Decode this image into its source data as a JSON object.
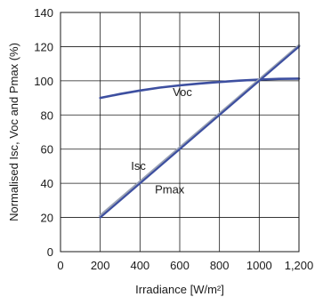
{
  "chart_data": {
    "type": "line",
    "title": "",
    "xlabel": "Irradiance [W/m²]",
    "ylabel": "Normalised Isc, Voc and Pmax (%)",
    "xlim": [
      0,
      1200
    ],
    "ylim": [
      0,
      140
    ],
    "x_ticks": [
      0,
      200,
      400,
      600,
      800,
      1000,
      1200
    ],
    "x_tick_labels": [
      "0",
      "200",
      "400",
      "600",
      "800",
      "1000",
      "1,200"
    ],
    "y_ticks": [
      0,
      20,
      40,
      60,
      80,
      100,
      120,
      140
    ],
    "y_tick_labels": [
      "0",
      "20",
      "40",
      "60",
      "80",
      "100",
      "120",
      "140"
    ],
    "grid": true,
    "legend": "none",
    "series": [
      {
        "name": "Voc",
        "color": "#3d4fa0",
        "x": [
          200,
          300,
          400,
          500,
          600,
          700,
          800,
          900,
          1000,
          1100,
          1200
        ],
        "y": [
          90,
          92.3,
          94.3,
          96,
          97.3,
          98.4,
          99.3,
          100.1,
          100.7,
          101.1,
          101.3
        ]
      },
      {
        "name": "Isc",
        "color": "#9aa2b4",
        "x": [
          200,
          1000,
          1200
        ],
        "y": [
          21,
          100.5,
          120.5
        ]
      },
      {
        "name": "Pmax",
        "color": "#3d4fa0",
        "x": [
          200,
          1000,
          1200
        ],
        "y": [
          20,
          100,
          120
        ]
      }
    ],
    "annotations": [
      {
        "text": "Voc",
        "x": 565,
        "y": 91
      },
      {
        "text": "Isc",
        "x": 355,
        "y": 48
      },
      {
        "text": "Pmax",
        "x": 475,
        "y": 34
      }
    ]
  }
}
